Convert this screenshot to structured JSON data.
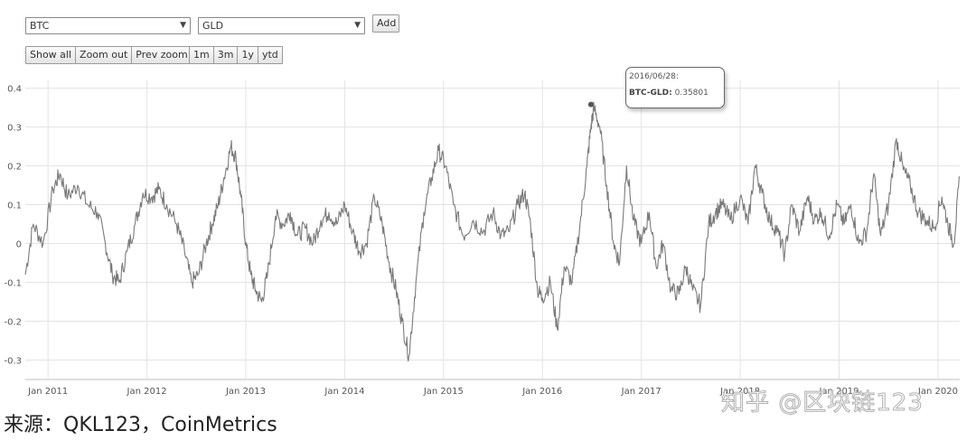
{
  "controls": {
    "select1": "BTC",
    "select2": "GLD",
    "add": "Add",
    "show_all": "Show all",
    "zoom_out": "Zoom out",
    "prev_zoom": "Prev zoom",
    "range_1m": "1m",
    "range_3m": "3m",
    "range_1y": "1y",
    "range_ytd": "ytd"
  },
  "tooltip": {
    "date": "2016/06/28:",
    "label": "BTC-GLD:",
    "value": "0.35801"
  },
  "source": "来源：QKL123，CoinMetrics",
  "watermark": "知乎 @区块链123",
  "chart_data": {
    "type": "line",
    "title": "",
    "xlabel": "",
    "ylabel": "",
    "grid": true,
    "ylim": [
      -0.35,
      0.42
    ],
    "yticks": [
      {
        "v": 0.4,
        "label": "0.4"
      },
      {
        "v": 0.3,
        "label": "0.3"
      },
      {
        "v": 0.2,
        "label": "0.2"
      },
      {
        "v": 0.1,
        "label": "0.1"
      },
      {
        "v": 0,
        "label": "0"
      },
      {
        "v": -0.1,
        "label": "-0.1"
      },
      {
        "v": -0.2,
        "label": "-0.2"
      },
      {
        "v": -0.3,
        "label": "-0.3"
      }
    ],
    "xlim": [
      2010.77,
      2020.22
    ],
    "xticks": [
      {
        "v": 2011,
        "label": "Jan 2011"
      },
      {
        "v": 2012,
        "label": "Jan 2012"
      },
      {
        "v": 2013,
        "label": "Jan 2013"
      },
      {
        "v": 2014,
        "label": "Jan 2014"
      },
      {
        "v": 2015,
        "label": "Jan 2015"
      },
      {
        "v": 2016,
        "label": "Jan 2016"
      },
      {
        "v": 2017,
        "label": "Jan 2017"
      },
      {
        "v": 2018,
        "label": "Jan 2018"
      },
      {
        "v": 2019,
        "label": "Jan 2019"
      },
      {
        "v": 2020,
        "label": "Jan 2020"
      }
    ],
    "series": [
      {
        "color": "#7a7a7a",
        "x": [
          2010.77,
          2010.85,
          2010.95,
          2011.05,
          2011.12,
          2011.2,
          2011.3,
          2011.4,
          2011.5,
          2011.58,
          2011.65,
          2011.72,
          2011.8,
          2011.88,
          2011.96,
          2012.05,
          2012.12,
          2012.2,
          2012.3,
          2012.38,
          2012.45,
          2012.52,
          2012.6,
          2012.66,
          2012.72,
          2012.78,
          2012.85,
          2012.9,
          2012.95,
          2013.0,
          2013.05,
          2013.1,
          2013.16,
          2013.22,
          2013.3,
          2013.38,
          2013.45,
          2013.52,
          2013.6,
          2013.68,
          2013.76,
          2013.84,
          2013.92,
          2014.0,
          2014.08,
          2014.15,
          2014.22,
          2014.3,
          2014.38,
          2014.45,
          2014.52,
          2014.58,
          2014.65,
          2014.72,
          2014.8,
          2014.88,
          2014.95,
          2015.02,
          2015.1,
          2015.2,
          2015.3,
          2015.4,
          2015.5,
          2015.58,
          2015.66,
          2015.75,
          2015.82,
          2015.88,
          2015.95,
          2016.0,
          2016.08,
          2016.15,
          2016.22,
          2016.3,
          2016.38,
          2016.45,
          2016.49,
          2016.52,
          2016.58,
          2016.65,
          2016.72,
          2016.78,
          2016.85,
          2016.92,
          2017.0,
          2017.08,
          2017.15,
          2017.22,
          2017.3,
          2017.38,
          2017.45,
          2017.52,
          2017.6,
          2017.68,
          2017.75,
          2017.82,
          2017.9,
          2018.0,
          2018.08,
          2018.15,
          2018.22,
          2018.3,
          2018.38,
          2018.45,
          2018.52,
          2018.6,
          2018.68,
          2018.75,
          2018.82,
          2018.9,
          2018.98,
          2019.05,
          2019.12,
          2019.2,
          2019.28,
          2019.35,
          2019.42,
          2019.5,
          2019.58,
          2019.65,
          2019.72,
          2019.8,
          2019.88,
          2019.96,
          2020.04,
          2020.1,
          2020.16,
          2020.22
        ],
        "y": [
          -0.08,
          0.05,
          0.0,
          0.14,
          0.18,
          0.12,
          0.15,
          0.1,
          0.08,
          0.0,
          -0.08,
          -0.1,
          -0.02,
          0.05,
          0.13,
          0.12,
          0.14,
          0.1,
          0.05,
          -0.02,
          -0.1,
          -0.08,
          0.0,
          0.05,
          0.1,
          0.17,
          0.25,
          0.22,
          0.12,
          0.0,
          -0.08,
          -0.12,
          -0.15,
          -0.08,
          0.07,
          0.05,
          0.08,
          0.02,
          0.04,
          0.0,
          0.06,
          0.08,
          0.05,
          0.1,
          0.03,
          -0.02,
          0.0,
          0.12,
          0.05,
          -0.05,
          -0.12,
          -0.2,
          -0.29,
          -0.1,
          0.08,
          0.17,
          0.24,
          0.2,
          0.1,
          0.02,
          0.06,
          0.03,
          0.08,
          0.02,
          0.03,
          0.1,
          0.13,
          0.05,
          -0.12,
          -0.14,
          -0.1,
          -0.22,
          -0.06,
          -0.1,
          0.05,
          0.2,
          0.3,
          0.35,
          0.3,
          0.15,
          0.0,
          -0.05,
          0.2,
          0.06,
          0.0,
          0.08,
          -0.06,
          0.0,
          -0.12,
          -0.13,
          -0.06,
          -0.12,
          -0.16,
          0.05,
          0.08,
          0.1,
          0.06,
          0.12,
          0.05,
          0.2,
          0.13,
          0.06,
          0.03,
          -0.03,
          0.1,
          0.03,
          0.12,
          0.06,
          0.08,
          0.02,
          0.1,
          0.05,
          0.1,
          0.0,
          0.03,
          0.18,
          0.02,
          0.1,
          0.27,
          0.19,
          0.15,
          0.08,
          0.06,
          0.04,
          0.12,
          0.05,
          0.0,
          0.17
        ]
      }
    ],
    "highlight": {
      "x": 2016.49,
      "y": 0.35801
    }
  }
}
